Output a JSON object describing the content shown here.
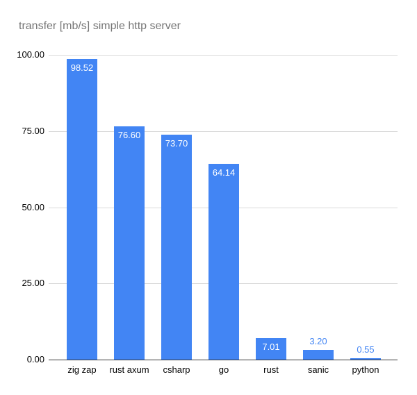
{
  "chart_data": {
    "type": "bar",
    "title": "transfer [mb/s] simple http server",
    "categories": [
      "zig zap",
      "rust axum",
      "csharp",
      "go",
      "rust",
      "sanic",
      "python"
    ],
    "values": [
      98.52,
      76.6,
      73.7,
      64.14,
      7.01,
      3.2,
      0.55
    ],
    "value_labels": [
      "98.52",
      "76.60",
      "73.70",
      "64.14",
      "7.01",
      "3.20",
      "0.55"
    ],
    "xlabel": "",
    "ylabel": "",
    "ylim": [
      0,
      100
    ],
    "yticks": [
      "0.00",
      "25.00",
      "50.00",
      "75.00",
      "100.00"
    ],
    "grid": true,
    "legend": false,
    "colors": {
      "bar": "#4285f4",
      "value_label_inside": "#ffffff",
      "value_label_outside": "#4285f4",
      "title": "#757575",
      "axis_label": "#000000",
      "gridline": "#d9d9d9",
      "baseline": "#333333",
      "background": "#ffffff"
    }
  }
}
